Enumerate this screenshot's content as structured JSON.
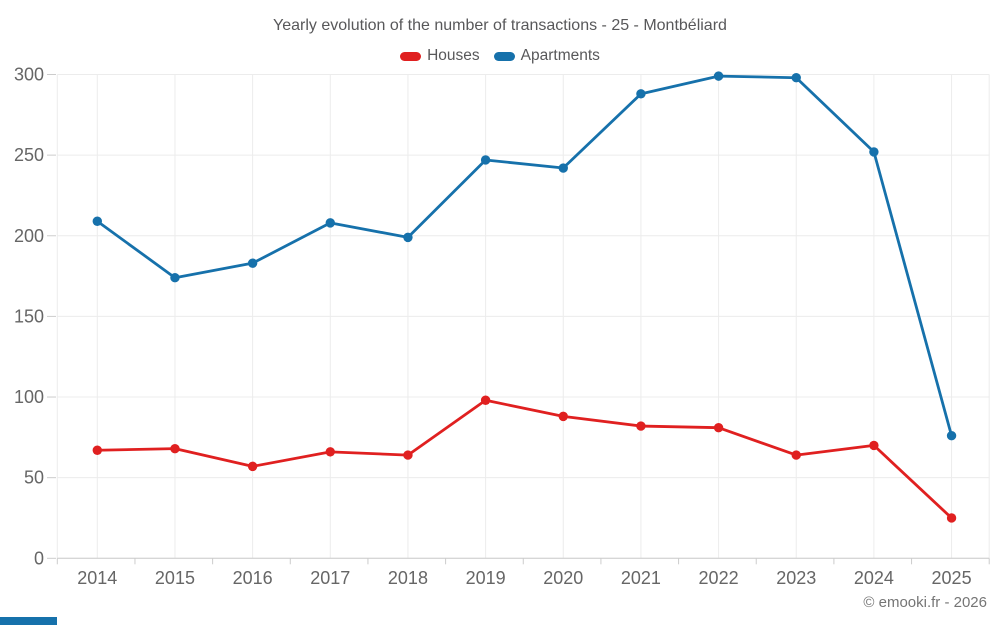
{
  "title": "Yearly evolution of the number of transactions - 25 - Montbéliard",
  "footer": {
    "credit": "© emooki.fr - 2026"
  },
  "chart_data": {
    "type": "line",
    "title": "Yearly evolution of the number of transactions - 25 - Montbéliard",
    "categories": [
      "2014",
      "2015",
      "2016",
      "2017",
      "2018",
      "2019",
      "2020",
      "2021",
      "2022",
      "2023",
      "2024",
      "2025"
    ],
    "series": [
      {
        "name": "Houses",
        "color": "#e02020",
        "marker": "circle",
        "values": [
          67,
          68,
          57,
          66,
          64,
          98,
          88,
          82,
          81,
          64,
          70,
          25
        ]
      },
      {
        "name": "Apartments",
        "color": "#1671ab",
        "marker": "circle",
        "values": [
          209,
          174,
          183,
          208,
          199,
          247,
          242,
          288,
          299,
          298,
          252,
          76
        ]
      }
    ],
    "xlabel": "",
    "ylabel": "",
    "ylim": [
      0,
      300
    ],
    "yticks": [
      0,
      50,
      100,
      150,
      200,
      250,
      300
    ],
    "grid": true,
    "legend_position": "top"
  },
  "colors": {
    "grid": "#ececec",
    "axis": "#cccccc",
    "tick_label": "#666666",
    "title_text": "#58585a",
    "footer_text": "#757575",
    "bottom_bar": "#1671ab",
    "background": "#ffffff"
  }
}
